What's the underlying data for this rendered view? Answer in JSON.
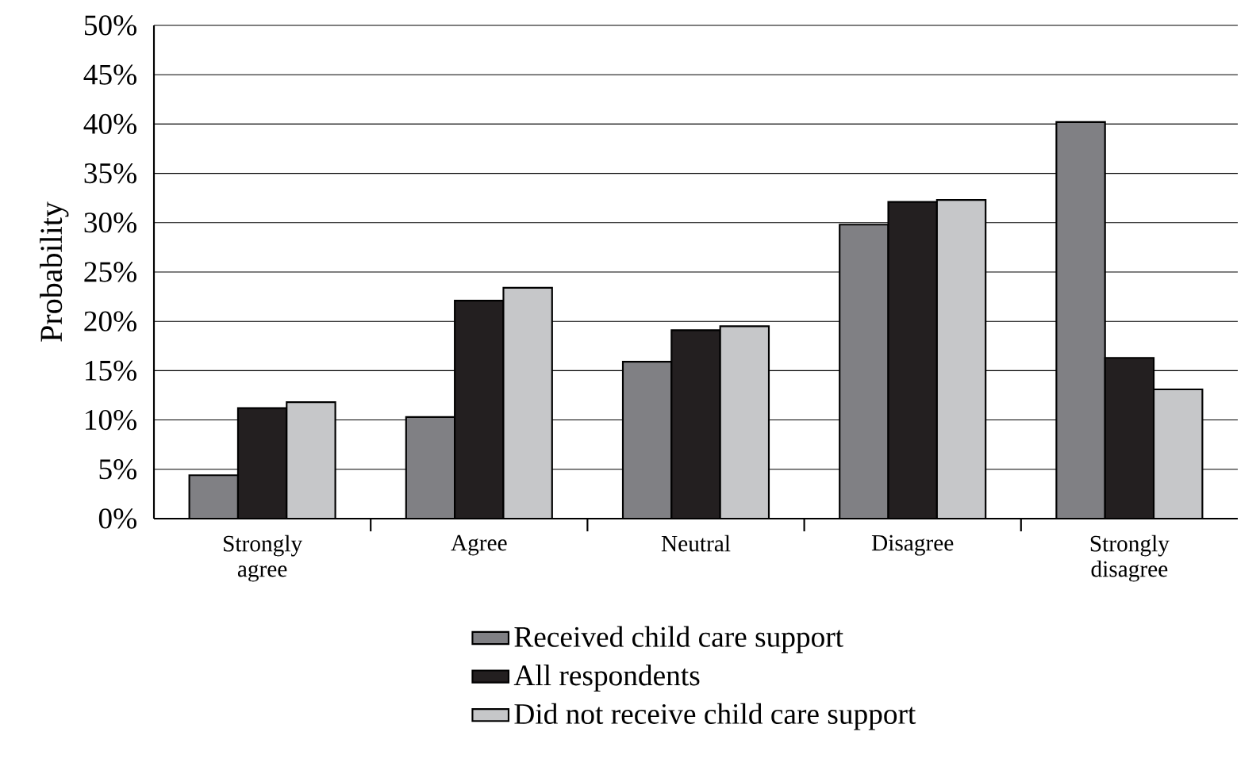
{
  "chart_data": {
    "type": "bar",
    "ylabel": "Probability",
    "categories": [
      "Strongly agree",
      "Agree",
      "Neutral",
      "Disagree",
      "Strongly disagree"
    ],
    "series": [
      {
        "name": "Received child care support",
        "color": "#808084",
        "values": [
          4.4,
          10.3,
          15.9,
          29.8,
          40.2
        ]
      },
      {
        "name": "All respondents",
        "color": "#231f20",
        "values": [
          11.2,
          22.1,
          19.1,
          32.1,
          16.3
        ]
      },
      {
        "name": "Did not receive child care support",
        "color": "#c6c7c9",
        "values": [
          11.8,
          23.4,
          19.5,
          32.3,
          13.1
        ]
      }
    ],
    "ylim": [
      0,
      50
    ],
    "yticks": [
      {
        "value": 0,
        "label": "0%"
      },
      {
        "value": 5,
        "label": "5%"
      },
      {
        "value": 10,
        "label": "10%"
      },
      {
        "value": 15,
        "label": "15%"
      },
      {
        "value": 20,
        "label": "20%"
      },
      {
        "value": 25,
        "label": "25%"
      },
      {
        "value": 30,
        "label": "30%"
      },
      {
        "value": 35,
        "label": "35%"
      },
      {
        "value": 40,
        "label": "40%"
      },
      {
        "value": 45,
        "label": "45%"
      },
      {
        "value": 50,
        "label": "50%"
      }
    ],
    "grid": "y",
    "legend": "bottom"
  }
}
